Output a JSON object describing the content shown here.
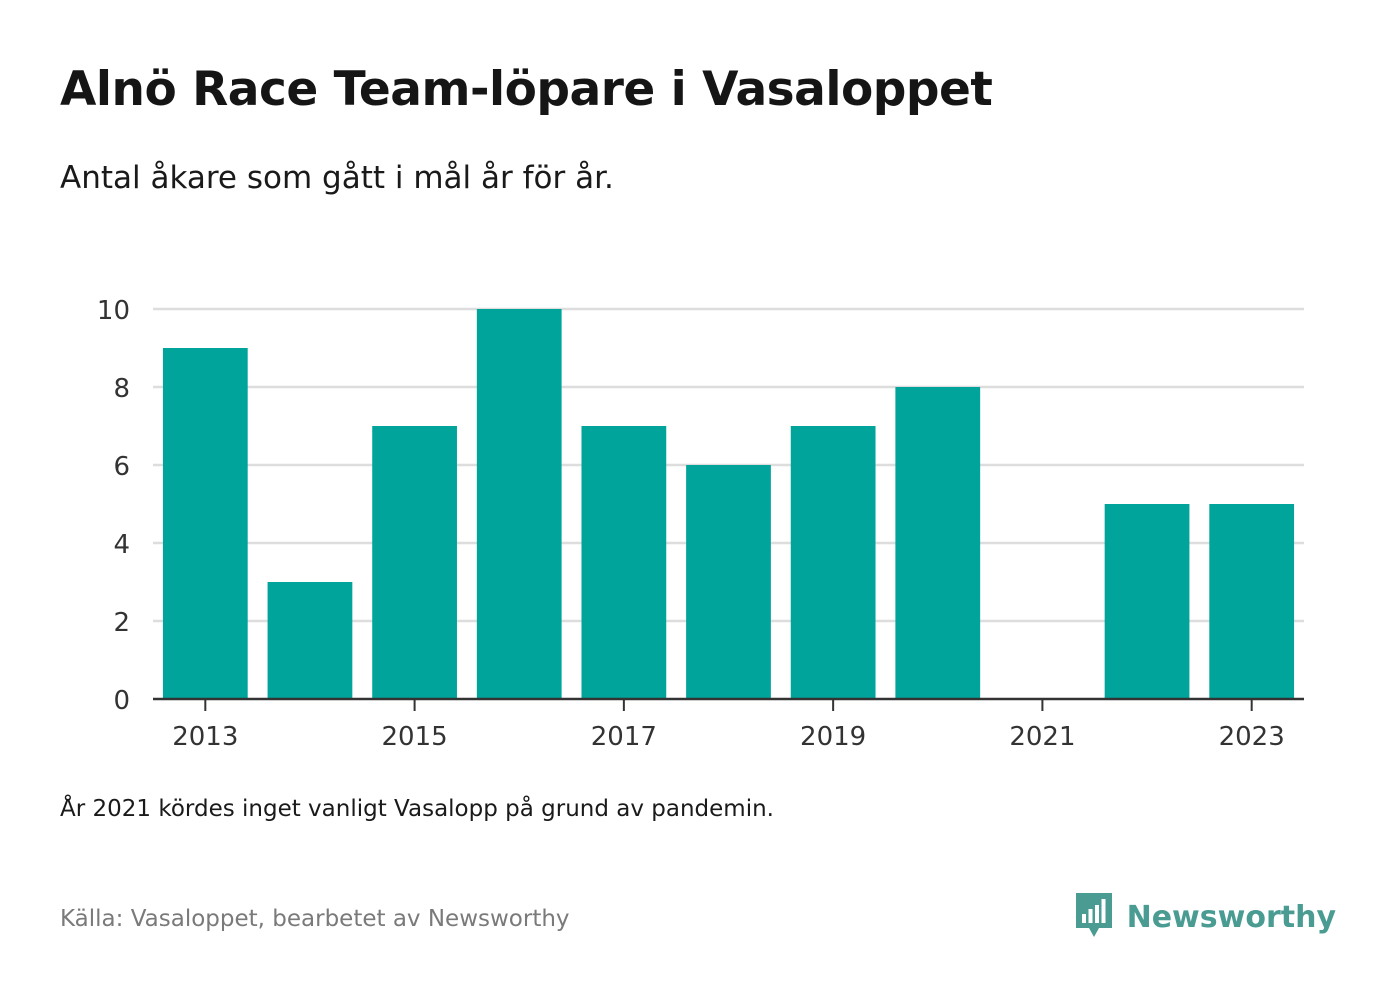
{
  "title": "Alnö Race Team-löpare i Vasaloppet",
  "subtitle": "Antal åkare som gått i mål år för år.",
  "note": "År 2021 kördes inget vanligt Vasalopp på grund av pandemin.",
  "source": "Källa: Vasaloppet, bearbetet av Newsworthy",
  "brand": {
    "name": "Newsworthy",
    "icon": "bar-chart-speech-bubble-icon"
  },
  "colors": {
    "bar": "#00a49a",
    "grid": "#dddddd",
    "axis": "#333333",
    "brand": "#4a9c92"
  },
  "chart_data": {
    "type": "bar",
    "categories": [
      "2013",
      "2014",
      "2015",
      "2016",
      "2017",
      "2018",
      "2019",
      "2020",
      "2021",
      "2022",
      "2023"
    ],
    "values": [
      9,
      3,
      7,
      10,
      7,
      6,
      7,
      8,
      null,
      5,
      5
    ],
    "xticks": [
      "2013",
      "2015",
      "2017",
      "2019",
      "2021",
      "2023"
    ],
    "yticks": [
      0,
      2,
      4,
      6,
      8,
      10
    ],
    "ylim": [
      0,
      10
    ],
    "grid": true,
    "legend": "none"
  }
}
